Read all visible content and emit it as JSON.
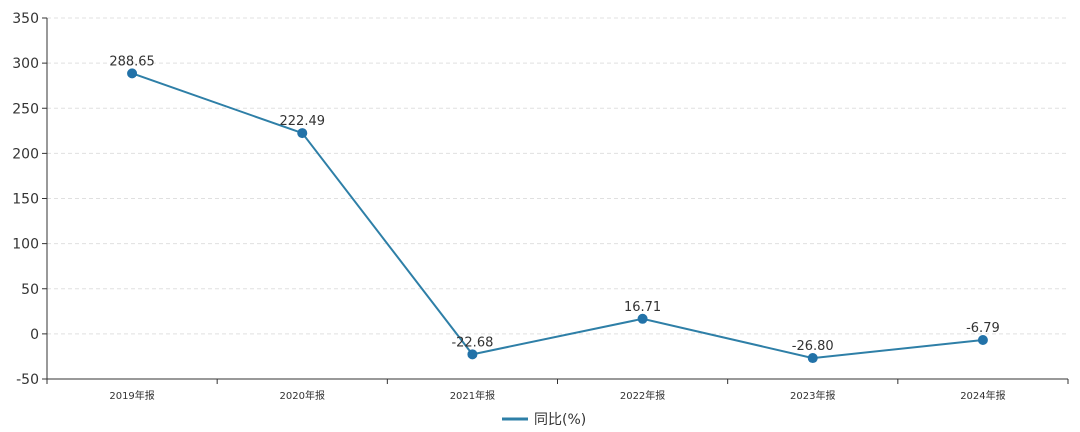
{
  "chart_data": {
    "type": "line",
    "categories": [
      "2019年报",
      "2020年报",
      "2021年报",
      "2022年报",
      "2023年报",
      "2024年报"
    ],
    "series": [
      {
        "name": "同比(%)",
        "values": [
          288.65,
          222.49,
          -22.68,
          16.71,
          -26.8,
          -6.79
        ],
        "labels": [
          "288.65",
          "222.49",
          "-22.68",
          "16.71",
          "-26.80",
          "-6.79"
        ]
      }
    ],
    "ylim": [
      -50,
      350
    ],
    "yticks": [
      -50,
      0,
      50,
      100,
      150,
      200,
      250,
      300,
      350
    ],
    "ytick_labels": [
      "-50",
      "0",
      "50",
      "100",
      "150",
      "200",
      "250",
      "300",
      "350"
    ],
    "grid": true,
    "legend_position": "bottom-center",
    "colors": {
      "line": "#2e7fa7",
      "marker": "#2272a8",
      "grid": "#e0e0e0",
      "axis": "#333333"
    }
  }
}
